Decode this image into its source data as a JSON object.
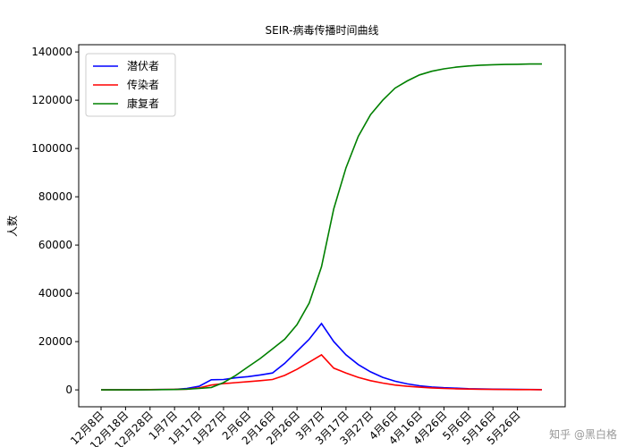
{
  "chart_data": {
    "type": "line",
    "title": "SEIR-病毒传播时间曲线",
    "y_label": "人数",
    "categories": [
      "12月8日",
      null,
      "12月18日",
      null,
      "12月28日",
      null,
      "1月7日",
      null,
      "1月17日",
      null,
      "1月27日",
      null,
      "2月6日",
      null,
      "2月16日",
      null,
      "2月26日",
      null,
      "3月7日",
      null,
      "3月17日",
      null,
      "3月27日",
      null,
      "4月6日",
      null,
      "4月16日",
      null,
      "4月26日",
      null,
      "5月6日",
      null,
      "5月16日",
      null,
      "5月26日",
      null,
      null
    ],
    "series": [
      {
        "name": "潜伏者",
        "color": "#0000ff",
        "values": [
          0,
          0,
          0,
          50,
          100,
          150,
          200,
          600,
          1500,
          4200,
          4300,
          5000,
          5500,
          6200,
          7000,
          11000,
          16000,
          21000,
          27500,
          20000,
          14500,
          10500,
          7500,
          5200,
          3600,
          2500,
          1700,
          1200,
          900,
          700,
          500,
          400,
          300,
          250,
          200,
          150,
          100
        ]
      },
      {
        "name": "传染者",
        "color": "#ff0000",
        "values": [
          0,
          0,
          0,
          50,
          100,
          150,
          200,
          300,
          800,
          2000,
          2600,
          3000,
          3400,
          3800,
          4300,
          6000,
          8500,
          11500,
          14500,
          9000,
          7000,
          5200,
          3800,
          2800,
          2000,
          1500,
          1100,
          800,
          600,
          450,
          350,
          250,
          200,
          150,
          120,
          100,
          80
        ]
      },
      {
        "name": "康复者",
        "color": "#008000",
        "values": [
          0,
          0,
          0,
          0,
          50,
          100,
          150,
          300,
          600,
          1000,
          3000,
          6000,
          9500,
          13000,
          17000,
          21000,
          27000,
          36000,
          51000,
          75000,
          92000,
          105000,
          114000,
          120000,
          125000,
          128000,
          130500,
          132000,
          133000,
          133700,
          134200,
          134500,
          134700,
          134800,
          134900,
          135000,
          135000
        ]
      }
    ],
    "ylim": [
      -7000,
      143000
    ],
    "yticks": [
      0,
      20000,
      40000,
      60000,
      80000,
      100000,
      120000,
      140000
    ],
    "legend": "upper-left",
    "watermark": "知乎 @黑白格"
  }
}
